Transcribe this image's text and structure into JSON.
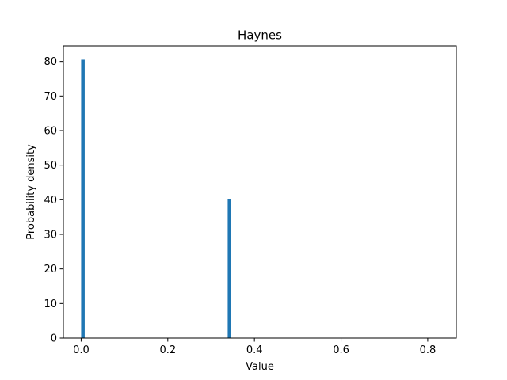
{
  "chart_data": {
    "type": "bar",
    "title": "Haynes",
    "xlabel": "Value",
    "ylabel": "Probability density",
    "xlim": [
      -0.041,
      0.866
    ],
    "ylim": [
      0,
      84.5
    ],
    "xticks": [
      0.0,
      0.2,
      0.4,
      0.6,
      0.8
    ],
    "xtick_labels": [
      "0.0",
      "0.2",
      "0.4",
      "0.6",
      "0.8"
    ],
    "yticks": [
      0,
      10,
      20,
      30,
      40,
      50,
      60,
      70,
      80
    ],
    "ytick_labels": [
      "0",
      "10",
      "20",
      "30",
      "40",
      "50",
      "60",
      "70",
      "80"
    ],
    "bar_color": "#1f77b4",
    "bin_width": 0.00825,
    "bins": [
      {
        "x": 0.0,
        "value": 80.5
      },
      {
        "x": 0.3383,
        "value": 40.3
      }
    ],
    "grid": false,
    "legend": "none"
  }
}
